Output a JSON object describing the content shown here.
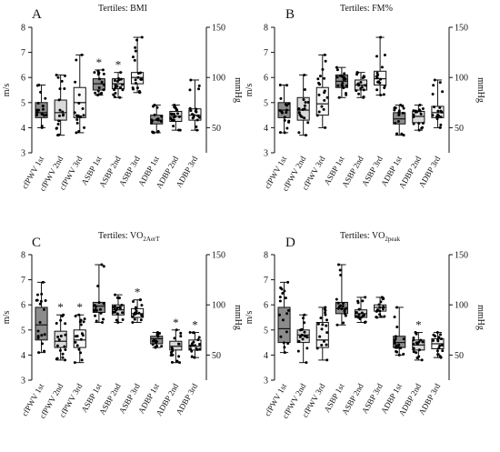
{
  "colors": {
    "group1": "#8c8c8c",
    "group2": "#dadada",
    "group3": "#f7f7f7",
    "stroke": "#111111",
    "point": "#000000"
  },
  "categories": [
    "cfPWV 1st",
    "cfPWV 2nd",
    "cfPWV 3rd",
    "ASBP 1st",
    "ASBP 2nd",
    "ASBP 3rd",
    "ADBP 1st",
    "ADBP 2nd",
    "ADBP 3rd"
  ],
  "chart_data": [
    {
      "type": "box",
      "panel": "A",
      "title": "Tertiles:  BMI",
      "ylabel_left": "m/s",
      "ylabel_right": "mmHg",
      "ylim_left": [
        3,
        8
      ],
      "yticks_left": [
        "3",
        "4",
        "5",
        "6",
        "7",
        "8"
      ],
      "yticks_right": [
        "50",
        "100",
        "150"
      ],
      "categories": [
        "cfPWV 1st",
        "cfPWV 2nd",
        "cfPWV 3rd",
        "ASBP 1st",
        "ASBP 2nd",
        "ASBP 3rd",
        "ADBP 1st",
        "ADBP 2nd",
        "ADBP 3rd"
      ],
      "fills": [
        "group1",
        "group2",
        "group3",
        "group1",
        "group2",
        "group3",
        "group1",
        "group2",
        "group3"
      ],
      "boxes": [
        {
          "min": 4.0,
          "q1": 4.4,
          "median": 4.6,
          "q3": 5.0,
          "max": 5.7
        },
        {
          "min": 3.7,
          "q1": 4.3,
          "median": 4.6,
          "q3": 5.1,
          "max": 6.1
        },
        {
          "min": 3.8,
          "q1": 4.4,
          "median": 5.0,
          "q3": 5.6,
          "max": 6.9
        },
        {
          "min": 5.3,
          "q1": 5.5,
          "median": 5.75,
          "q3": 5.95,
          "max": 6.3
        },
        {
          "min": 5.2,
          "q1": 5.55,
          "median": 5.75,
          "q3": 5.95,
          "max": 6.2
        },
        {
          "min": 5.4,
          "q1": 5.75,
          "median": 6.0,
          "q3": 6.2,
          "max": 7.6
        },
        {
          "min": 3.8,
          "q1": 4.15,
          "median": 4.3,
          "q3": 4.5,
          "max": 4.9
        },
        {
          "min": 3.9,
          "q1": 4.25,
          "median": 4.45,
          "q3": 4.65,
          "max": 4.9
        },
        {
          "min": 3.9,
          "q1": 4.3,
          "median": 4.5,
          "q3": 4.75,
          "max": 5.9
        }
      ],
      "significant": [
        false,
        false,
        false,
        true,
        true,
        false,
        false,
        false,
        false
      ],
      "annotation": "*"
    },
    {
      "type": "box",
      "panel": "B",
      "title": "Tertiles:  FM%",
      "ylabel_left": "m/s",
      "ylabel_right": "mmHg",
      "ylim_left": [
        3,
        8
      ],
      "yticks_left": [
        "3",
        "4",
        "5",
        "6",
        "7",
        "8"
      ],
      "yticks_right": [
        "50",
        "100",
        "150"
      ],
      "categories": [
        "cfPWV 1st",
        "cfPWV 2nd",
        "cfPWV 3rd",
        "ASBP 1st",
        "ASBP 2nd",
        "ASBP 3rd",
        "ADBP 1st",
        "ADBP 2nd",
        "ADBP 3rd"
      ],
      "fills": [
        "group1",
        "group2",
        "group3",
        "group1",
        "group2",
        "group3",
        "group1",
        "group2",
        "group3"
      ],
      "boxes": [
        {
          "min": 3.8,
          "q1": 4.4,
          "median": 4.7,
          "q3": 5.0,
          "max": 5.7
        },
        {
          "min": 3.7,
          "q1": 4.3,
          "median": 4.7,
          "q3": 5.2,
          "max": 6.1
        },
        {
          "min": 4.0,
          "q1": 4.5,
          "median": 4.95,
          "q3": 5.6,
          "max": 6.9
        },
        {
          "min": 5.2,
          "q1": 5.6,
          "median": 5.85,
          "q3": 6.1,
          "max": 6.4
        },
        {
          "min": 5.2,
          "q1": 5.5,
          "median": 5.7,
          "q3": 5.9,
          "max": 6.2
        },
        {
          "min": 5.3,
          "q1": 5.7,
          "median": 5.95,
          "q3": 6.25,
          "max": 7.6
        },
        {
          "min": 3.7,
          "q1": 4.15,
          "median": 4.35,
          "q3": 4.6,
          "max": 4.9
        },
        {
          "min": 3.9,
          "q1": 4.2,
          "median": 4.45,
          "q3": 4.65,
          "max": 4.9
        },
        {
          "min": 4.0,
          "q1": 4.4,
          "median": 4.6,
          "q3": 4.85,
          "max": 5.9
        }
      ],
      "significant": [
        false,
        false,
        false,
        false,
        false,
        false,
        false,
        false,
        false
      ],
      "annotation": "*"
    },
    {
      "type": "box",
      "panel": "C",
      "title": "Tertiles:  VO",
      "title_sub": "2AerT",
      "ylabel_left": "m/s",
      "ylabel_right": "mmHg",
      "ylim_left": [
        3,
        8
      ],
      "yticks_left": [
        "3",
        "4",
        "5",
        "6",
        "7",
        "8"
      ],
      "yticks_right": [
        "50",
        "100",
        "150"
      ],
      "categories": [
        "cfPWV 1st",
        "cfPWV 2nd",
        "cfPWV 3rd",
        "ASBP 1st",
        "ASBP 2nd",
        "ASBP 3rd",
        "ADBP 1st",
        "ADBP 2nd",
        "ADBP 3rd"
      ],
      "fills": [
        "group1",
        "group2",
        "group3",
        "group1",
        "group2",
        "group3",
        "group1",
        "group2",
        "group3"
      ],
      "boxes": [
        {
          "min": 4.1,
          "q1": 4.6,
          "median": 5.2,
          "q3": 5.9,
          "max": 6.9
        },
        {
          "min": 3.8,
          "q1": 4.3,
          "median": 4.55,
          "q3": 4.95,
          "max": 5.6
        },
        {
          "min": 3.7,
          "q1": 4.3,
          "median": 4.6,
          "q3": 5.0,
          "max": 5.6
        },
        {
          "min": 5.3,
          "q1": 5.7,
          "median": 5.95,
          "q3": 6.1,
          "max": 7.6
        },
        {
          "min": 5.3,
          "q1": 5.6,
          "median": 5.8,
          "q3": 6.0,
          "max": 6.4
        },
        {
          "min": 5.3,
          "q1": 5.5,
          "median": 5.65,
          "q3": 5.85,
          "max": 6.2
        },
        {
          "min": 4.3,
          "q1": 4.45,
          "median": 4.65,
          "q3": 4.75,
          "max": 4.9
        },
        {
          "min": 3.7,
          "q1": 4.2,
          "median": 4.35,
          "q3": 4.55,
          "max": 5.0
        },
        {
          "min": 3.9,
          "q1": 4.2,
          "median": 4.35,
          "q3": 4.6,
          "max": 4.9
        }
      ],
      "significant": [
        false,
        true,
        true,
        false,
        false,
        true,
        false,
        true,
        true
      ],
      "annotation": "*"
    },
    {
      "type": "box",
      "panel": "D",
      "title": "Tertiles:  VO",
      "title_sub": "2peak",
      "ylabel_left": "m/s",
      "ylabel_right": "mmHg",
      "ylim_left": [
        3,
        8
      ],
      "yticks_left": [
        "3",
        "4",
        "5",
        "6",
        "7",
        "8"
      ],
      "yticks_right": [
        "50",
        "100",
        "150"
      ],
      "categories": [
        "cfPWV 1st",
        "cfPWV 2nd",
        "cfPWV 3rd",
        "ASBP 1st",
        "ASBP 2nd",
        "ASBP 3rd",
        "ADBP 1st",
        "ADBP 2nd",
        "ADBP 3rd"
      ],
      "fills": [
        "group1",
        "group2",
        "group3",
        "group1",
        "group2",
        "group3",
        "group1",
        "group2",
        "group3"
      ],
      "boxes": [
        {
          "min": 4.1,
          "q1": 4.5,
          "median": 5.05,
          "q3": 5.9,
          "max": 6.9
        },
        {
          "min": 3.7,
          "q1": 4.5,
          "median": 4.8,
          "q3": 5.0,
          "max": 5.6
        },
        {
          "min": 3.8,
          "q1": 4.3,
          "median": 4.6,
          "q3": 5.3,
          "max": 5.9
        },
        {
          "min": 5.2,
          "q1": 5.65,
          "median": 5.85,
          "q3": 6.1,
          "max": 7.6
        },
        {
          "min": 5.3,
          "q1": 5.5,
          "median": 5.65,
          "q3": 5.8,
          "max": 6.3
        },
        {
          "min": 5.5,
          "q1": 5.75,
          "median": 5.9,
          "q3": 6.0,
          "max": 6.3
        },
        {
          "min": 4.0,
          "q1": 4.3,
          "median": 4.5,
          "q3": 4.75,
          "max": 5.9
        },
        {
          "min": 3.8,
          "q1": 4.2,
          "median": 4.4,
          "q3": 4.6,
          "max": 4.9
        },
        {
          "min": 3.9,
          "q1": 4.25,
          "median": 4.45,
          "q3": 4.65,
          "max": 4.9
        }
      ],
      "significant": [
        false,
        false,
        false,
        false,
        false,
        false,
        false,
        true,
        false
      ],
      "annotation": "*"
    }
  ]
}
